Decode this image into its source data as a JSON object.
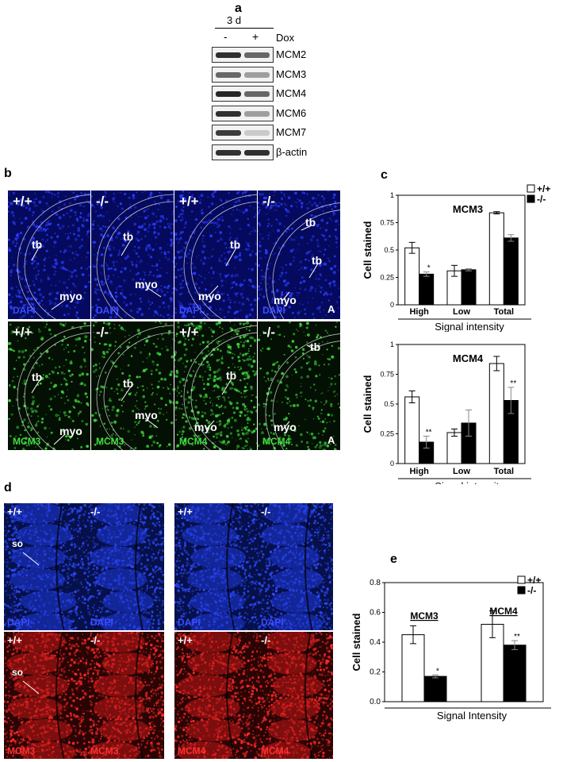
{
  "panel_a": {
    "label": "a",
    "time_label": "3 d",
    "dox_minus": "-",
    "dox_plus": "+",
    "dox_label": "Dox",
    "rows": [
      {
        "protein": "MCM2",
        "minus": 0.85,
        "plus": 0.6
      },
      {
        "protein": "MCM3",
        "minus": 0.6,
        "plus": 0.35
      },
      {
        "protein": "MCM4",
        "minus": 0.9,
        "plus": 0.6
      },
      {
        "protein": "MCM6",
        "minus": 0.85,
        "plus": 0.35
      },
      {
        "protein": "MCM7",
        "minus": 0.8,
        "plus": 0.15
      },
      {
        "protein": "β-actin",
        "minus": 0.85,
        "plus": 0.85
      }
    ]
  },
  "panel_b": {
    "label": "b",
    "tiles": [
      {
        "genotype": "+/+",
        "stain": "DAPI",
        "labels": [
          "tb",
          "myo"
        ]
      },
      {
        "genotype": "-/-",
        "stain": "DAPI",
        "labels": [
          "tb",
          "myo"
        ]
      },
      {
        "genotype": "+/+",
        "stain": "DAPI",
        "labels": [
          "tb",
          "myo"
        ]
      },
      {
        "genotype": "-/-",
        "stain": "DAPI",
        "labels": [
          "tb",
          "tb",
          "myo"
        ],
        "corner": "A"
      },
      {
        "genotype": "+/+",
        "stain": "MCM3",
        "labels": [
          "tb",
          "myo"
        ]
      },
      {
        "genotype": "-/-",
        "stain": "MCM3",
        "labels": [
          "tb",
          "myo"
        ]
      },
      {
        "genotype": "+/+",
        "stain": "MCM4",
        "labels": [
          "tb",
          "myo"
        ]
      },
      {
        "genotype": "-/-",
        "stain": "MCM4",
        "labels": [
          "tb",
          "myo"
        ],
        "corner": "A"
      }
    ]
  },
  "panel_c": {
    "label": "c",
    "legend": [
      "+/+",
      "-/-"
    ],
    "ylabel": "Cell stained",
    "xlabel": "Signal intensity"
  },
  "panel_d": {
    "label": "d",
    "tiles": [
      {
        "genotype": "+/+",
        "stain": "DAPI",
        "label": "so"
      },
      {
        "genotype": "-/-",
        "stain": "DAPI"
      },
      {
        "genotype": "+/+",
        "stain": "DAPI"
      },
      {
        "genotype": "-/-",
        "stain": "DAPI"
      },
      {
        "genotype": "+/+",
        "stain": "MCM3",
        "label": "so"
      },
      {
        "genotype": "-/-",
        "stain": "MCM3"
      },
      {
        "genotype": "+/+",
        "stain": "MCM4"
      },
      {
        "genotype": "-/-",
        "stain": "MCM4"
      }
    ]
  },
  "panel_e": {
    "label": "e",
    "legend": [
      "+/+",
      "-/-"
    ],
    "ylabel": "Cell stained",
    "xlabel": "Signal Intensity"
  },
  "chart_data": [
    {
      "type": "bar",
      "title": "MCM3",
      "categories": [
        "High",
        "Low",
        "Total"
      ],
      "series": [
        {
          "name": "+/+",
          "values": [
            0.52,
            0.31,
            0.84
          ],
          "errors": [
            0.05,
            0.05,
            0.01
          ]
        },
        {
          "name": "-/-",
          "values": [
            0.28,
            0.32,
            0.61
          ],
          "errors": [
            0.02,
            0.01,
            0.03
          ]
        }
      ],
      "significance": [
        "*",
        "",
        ""
      ],
      "xlabel": "Signal intensity",
      "ylabel": "Cell stained",
      "ylim": [
        0,
        1
      ],
      "yticks": [
        "0",
        "0.25",
        "0.5",
        "0.75",
        "1"
      ]
    },
    {
      "type": "bar",
      "title": "MCM4",
      "categories": [
        "High",
        "Low",
        "Total"
      ],
      "series": [
        {
          "name": "+/+",
          "values": [
            0.56,
            0.26,
            0.84
          ],
          "errors": [
            0.05,
            0.03,
            0.06
          ]
        },
        {
          "name": "-/-",
          "values": [
            0.18,
            0.34,
            0.53
          ],
          "errors": [
            0.05,
            0.11,
            0.11
          ]
        }
      ],
      "significance": [
        "**",
        "",
        "**"
      ],
      "xlabel": "Signal intensity",
      "ylabel": "Cell stained",
      "ylim": [
        0,
        1
      ],
      "yticks": [
        "0",
        "0.25",
        "0.5",
        "0.75",
        "1"
      ]
    },
    {
      "type": "bar",
      "categories": [
        "MCM3",
        "MCM4"
      ],
      "series": [
        {
          "name": "+/+",
          "values": [
            0.45,
            0.52
          ],
          "errors": [
            0.06,
            0.09
          ]
        },
        {
          "name": "-/-",
          "values": [
            0.17,
            0.38
          ],
          "errors": [
            0.01,
            0.03
          ]
        }
      ],
      "significance": [
        "*",
        "**"
      ],
      "xlabel": "Signal Intensity",
      "ylabel": "Cell stained",
      "ylim": [
        0,
        0.8
      ],
      "yticks": [
        "0.0",
        "0.2",
        "0.4",
        "0.6",
        "0.8"
      ]
    }
  ]
}
